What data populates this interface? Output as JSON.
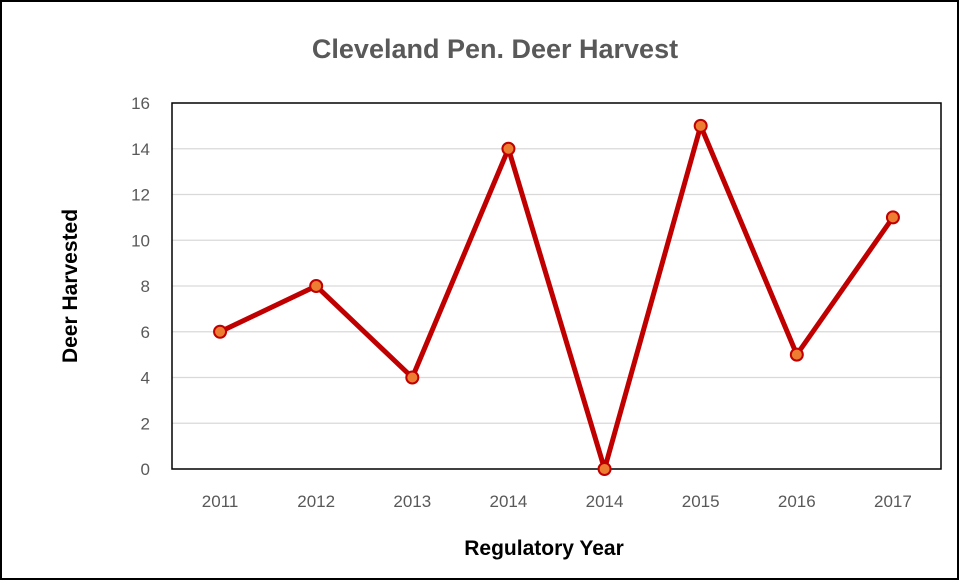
{
  "chart_data": {
    "type": "line",
    "title": "Cleveland Pen. Deer Harvest",
    "xlabel": "Regulatory Year",
    "ylabel": "Deer Harvested",
    "categories": [
      "2011",
      "2012",
      "2013",
      "2014",
      "2014",
      "2015",
      "2016",
      "2017"
    ],
    "series": [
      {
        "values": [
          6,
          8,
          4,
          14,
          0,
          15,
          5,
          11
        ],
        "color": "#c00000",
        "marker_fill": "#ed7d31",
        "marker_stroke": "#c00000"
      }
    ],
    "ylim": [
      0,
      16
    ],
    "yticks": [
      0,
      2,
      4,
      6,
      8,
      10,
      12,
      14,
      16
    ],
    "grid": true,
    "legend": "none"
  }
}
